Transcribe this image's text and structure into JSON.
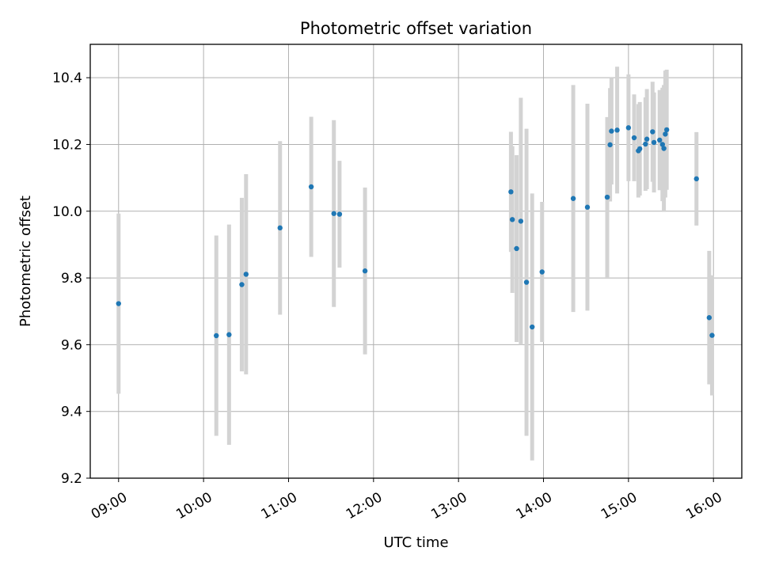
{
  "chart_data": {
    "type": "scatter",
    "title": "Photometric offset variation",
    "xlabel": "UTC time",
    "ylabel": "Photometric offset",
    "xlim": [
      "08:40",
      "16:20"
    ],
    "ylim": [
      9.2,
      10.5
    ],
    "x_ticks": [
      "09:00",
      "10:00",
      "11:00",
      "12:00",
      "13:00",
      "14:00",
      "15:00",
      "16:00"
    ],
    "y_ticks": [
      9.2,
      9.4,
      9.6,
      9.8,
      10.0,
      10.2,
      10.4
    ],
    "grid": true,
    "colors": {
      "points": "#1f77b4",
      "errorbars": "#d3d3d3",
      "grid": "#b0b0b0"
    },
    "points": [
      {
        "x": "09:00",
        "y": 9.723,
        "err": 0.27
      },
      {
        "x": "10:09",
        "y": 9.627,
        "err": 0.3
      },
      {
        "x": "10:18",
        "y": 9.63,
        "err": 0.33
      },
      {
        "x": "10:27",
        "y": 9.78,
        "err": 0.26
      },
      {
        "x": "10:30",
        "y": 9.811,
        "err": 0.3
      },
      {
        "x": "10:54",
        "y": 9.95,
        "err": 0.26
      },
      {
        "x": "11:16",
        "y": 10.073,
        "err": 0.21
      },
      {
        "x": "11:32",
        "y": 9.993,
        "err": 0.28
      },
      {
        "x": "11:36",
        "y": 9.991,
        "err": 0.16
      },
      {
        "x": "11:54",
        "y": 9.821,
        "err": 0.25
      },
      {
        "x": "13:37",
        "y": 10.058,
        "err": 0.18
      },
      {
        "x": "13:38",
        "y": 9.975,
        "err": 0.22
      },
      {
        "x": "13:41",
        "y": 9.888,
        "err": 0.28
      },
      {
        "x": "13:44",
        "y": 9.97,
        "err": 0.37
      },
      {
        "x": "13:48",
        "y": 9.787,
        "err": 0.46
      },
      {
        "x": "13:52",
        "y": 9.653,
        "err": 0.4
      },
      {
        "x": "13:59",
        "y": 9.818,
        "err": 0.21
      },
      {
        "x": "14:21",
        "y": 10.038,
        "err": 0.34
      },
      {
        "x": "14:31",
        "y": 10.012,
        "err": 0.31
      },
      {
        "x": "14:45",
        "y": 10.042,
        "err": 0.24
      },
      {
        "x": "14:47",
        "y": 10.199,
        "err": 0.17
      },
      {
        "x": "14:48",
        "y": 10.24,
        "err": 0.16
      },
      {
        "x": "14:52",
        "y": 10.243,
        "err": 0.19
      },
      {
        "x": "15:00",
        "y": 10.25,
        "err": 0.16
      },
      {
        "x": "15:04",
        "y": 10.22,
        "err": 0.13
      },
      {
        "x": "15:07",
        "y": 10.181,
        "err": 0.14
      },
      {
        "x": "15:08",
        "y": 10.187,
        "err": 0.14
      },
      {
        "x": "15:12",
        "y": 10.201,
        "err": 0.14
      },
      {
        "x": "15:13",
        "y": 10.216,
        "err": 0.15
      },
      {
        "x": "15:17",
        "y": 10.238,
        "err": 0.15
      },
      {
        "x": "15:18",
        "y": 10.206,
        "err": 0.15
      },
      {
        "x": "15:22",
        "y": 10.213,
        "err": 0.15
      },
      {
        "x": "15:24",
        "y": 10.2,
        "err": 0.17
      },
      {
        "x": "15:25",
        "y": 10.188,
        "err": 0.19
      },
      {
        "x": "15:26",
        "y": 10.231,
        "err": 0.19
      },
      {
        "x": "15:27",
        "y": 10.244,
        "err": 0.18
      },
      {
        "x": "15:48",
        "y": 10.097,
        "err": 0.14
      },
      {
        "x": "15:57",
        "y": 9.681,
        "err": 0.2
      },
      {
        "x": "15:59",
        "y": 9.628,
        "err": 0.18
      }
    ]
  }
}
